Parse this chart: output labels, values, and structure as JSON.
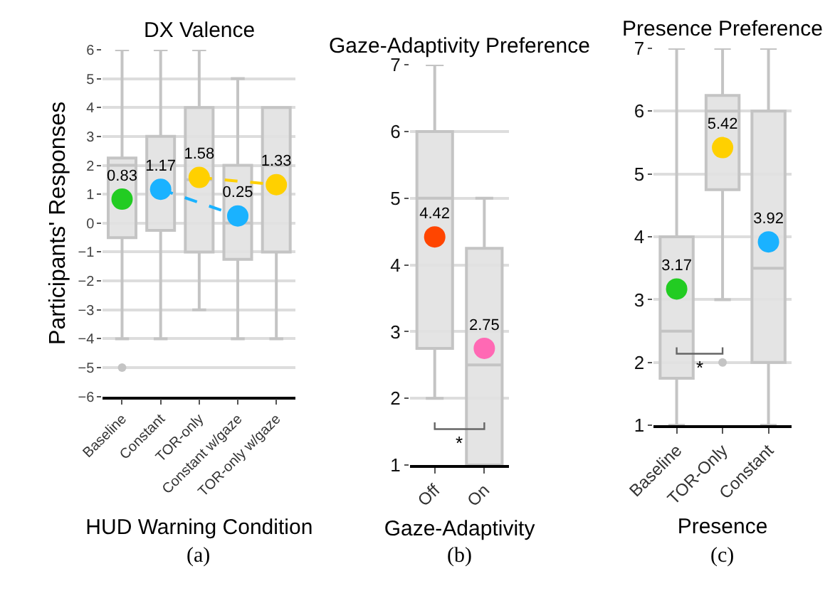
{
  "chart_data": [
    {
      "type": "box",
      "title": "DX Valence",
      "xlabel": "HUD Warning Condition",
      "ylabel": "Participants' Responses",
      "categories": [
        "Baseline",
        "Constant",
        "TOR-only",
        "Constant w/gaze",
        "TOR-only w/gaze"
      ],
      "ylim": [
        -6,
        6
      ],
      "yticks": [
        -6,
        -5,
        -4,
        -3,
        -2,
        -1,
        0,
        1,
        2,
        3,
        4,
        5,
        6
      ],
      "grid": "y",
      "color": "#c4c4c4",
      "boxes": [
        {
          "low": -4,
          "q1": -0.5,
          "median": 2,
          "q3": 2.25,
          "high": 6,
          "outliers": [
            -5
          ]
        },
        {
          "low": -4,
          "q1": -0.25,
          "median": 2,
          "q3": 3,
          "high": 6
        },
        {
          "low": -3,
          "q1": -1,
          "median": 1.5,
          "q3": 4,
          "high": 6
        },
        {
          "low": -4,
          "q1": -1.25,
          "median": 0,
          "q3": 2,
          "high": 5
        },
        {
          "low": -4,
          "q1": -1,
          "median": 2,
          "q3": 4,
          "high": 4
        }
      ],
      "series": [
        {
          "type": "line",
          "x": [
            "Constant",
            "Constant w/gaze"
          ],
          "values": [
            1.17,
            0.25
          ],
          "color": "#1ab2ff",
          "line_style": "dashed"
        },
        {
          "type": "line",
          "x": [
            "TOR-only",
            "TOR-only w/gaze"
          ],
          "values": [
            1.58,
            1.33
          ],
          "color": "#ffd000",
          "line_style": "dashed"
        },
        {
          "type": "scatter",
          "x": [
            "Baseline",
            "Constant",
            "TOR-only",
            "Constant w/gaze",
            "TOR-only w/gaze"
          ],
          "values": [
            0.83,
            1.17,
            1.58,
            0.25,
            1.33
          ],
          "colors": [
            "#22cc22",
            "#1ab2ff",
            "#ffd000",
            "#1ab2ff",
            "#ffd000"
          ],
          "value_labels": [
            "0.83",
            "1.17",
            "1.58",
            "0.25",
            "1.33"
          ],
          "marker": "circle"
        }
      ],
      "annotations": [
        "(a)"
      ]
    },
    {
      "type": "box",
      "title": "Gaze-Adaptivity Preference",
      "xlabel": "Gaze-Adaptivity",
      "categories": [
        "Off",
        "On"
      ],
      "ylim": [
        1,
        7
      ],
      "yticks": [
        1,
        2,
        3,
        4,
        5,
        6,
        7
      ],
      "grid": "y",
      "color": "#c4c4c4",
      "boxes": [
        {
          "low": 2,
          "q1": 2.75,
          "median": 5,
          "q3": 6,
          "high": 7
        },
        {
          "low": 1,
          "q1": 1,
          "median": 2.5,
          "q3": 4.25,
          "high": 5
        }
      ],
      "series": [
        {
          "type": "scatter",
          "x": [
            "Off",
            "On"
          ],
          "values": [
            4.42,
            2.75
          ],
          "colors": [
            "#ff4500",
            "#ff69b4"
          ],
          "value_labels": [
            "4.42",
            "2.75"
          ],
          "marker": "circle"
        }
      ],
      "annotations": [
        "(b)",
        "*"
      ]
    },
    {
      "type": "box",
      "title": "Presence Preference",
      "xlabel": "Presence",
      "categories": [
        "Baseline",
        "TOR-Only",
        "Constant"
      ],
      "ylim": [
        1,
        7
      ],
      "yticks": [
        1,
        2,
        3,
        4,
        5,
        6,
        7
      ],
      "grid": "y",
      "color": "#c4c4c4",
      "boxes": [
        {
          "low": 1,
          "q1": 1.75,
          "median": 2.5,
          "q3": 4,
          "high": 7
        },
        {
          "low": 3,
          "q1": 4.75,
          "median": 6,
          "q3": 6.25,
          "high": 7,
          "outliers": [
            2
          ]
        },
        {
          "low": 1,
          "q1": 2,
          "median": 3.5,
          "q3": 6,
          "high": 7
        }
      ],
      "series": [
        {
          "type": "scatter",
          "x": [
            "Baseline",
            "TOR-Only",
            "Constant"
          ],
          "values": [
            3.17,
            5.42,
            3.92
          ],
          "colors": [
            "#22cc22",
            "#ffd000",
            "#1ab2ff"
          ],
          "value_labels": [
            "3.17",
            "5.42",
            "3.92"
          ],
          "marker": "circle"
        }
      ],
      "annotations": [
        "(c)",
        "*"
      ]
    }
  ]
}
